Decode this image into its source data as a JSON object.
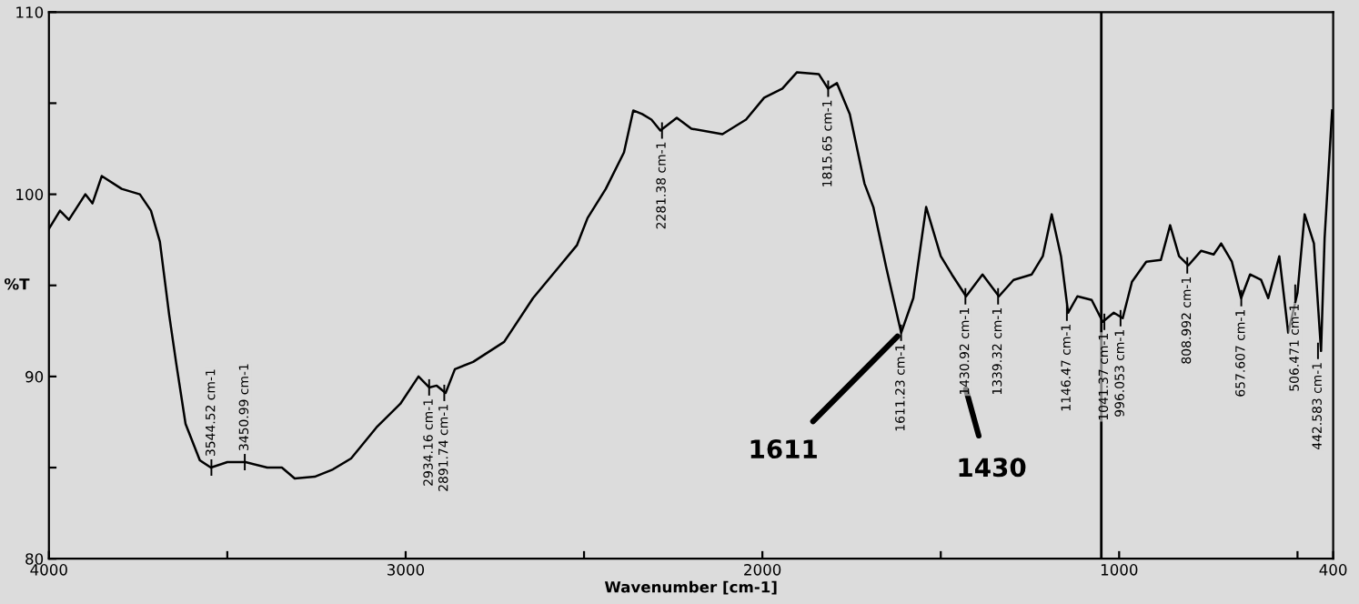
{
  "chart_data": {
    "type": "line",
    "xlabel": "Wavenumber [cm-1]",
    "ylabel": "%T",
    "xlim": [
      4000,
      400
    ],
    "ylim": [
      80,
      110
    ],
    "xticks": [
      4000,
      {
        "value": 3500,
        "label": null
      },
      3000,
      {
        "value": 2500,
        "label": null
      },
      2000,
      {
        "value": 1500,
        "label": null
      },
      1000,
      {
        "value": 500,
        "label": null
      },
      400
    ],
    "yticks": [
      80,
      {
        "value": 85,
        "label": null
      },
      90,
      {
        "value": 95,
        "label": null
      },
      100,
      {
        "value": 105,
        "label": null
      },
      110
    ],
    "grid": false,
    "legend": false,
    "marker": "none",
    "line_style": "solid",
    "ref_lines": [
      {
        "axis": "x",
        "value": 1050,
        "color": "#000000"
      }
    ],
    "series": [
      {
        "color": "#000000",
        "x": [
          4000,
          3969,
          3944,
          3898,
          3878,
          3852,
          3796,
          3745,
          3714,
          3689,
          3663,
          3643,
          3617,
          3577,
          3546,
          3500,
          3449,
          3388,
          3347,
          3311,
          3255,
          3204,
          3153,
          3082,
          3015,
          2964,
          2934,
          2913,
          2888,
          2862,
          2811,
          2724,
          2643,
          2571,
          2520,
          2490,
          2439,
          2388,
          2362,
          2337,
          2311,
          2286,
          2240,
          2199,
          2112,
          2046,
          1995,
          1944,
          1903,
          1842,
          1816,
          1791,
          1755,
          1714,
          1689,
          1653,
          1611,
          1577,
          1541,
          1500,
          1469,
          1429,
          1383,
          1337,
          1296,
          1245,
          1214,
          1189,
          1163,
          1143,
          1117,
          1077,
          1046,
          1015,
          990,
          964,
          924,
          883,
          857,
          832,
          806,
          770,
          735,
          714,
          684,
          658,
          633,
          602,
          582,
          551,
          526,
          500,
          480,
          454,
          434,
          424,
          403
        ],
        "values": [
          98.1,
          99.1,
          98.6,
          100.0,
          99.5,
          101,
          100.3,
          100,
          99.1,
          97.4,
          93.4,
          90.7,
          87.4,
          85.4,
          85.0,
          85.3,
          85.3,
          85.0,
          85.0,
          84.4,
          84.5,
          84.9,
          85.5,
          87.2,
          88.5,
          90,
          89.4,
          89.5,
          89.1,
          90.4,
          90.8,
          91.9,
          94.3,
          96,
          97.2,
          98.7,
          100.3,
          102.3,
          104.6,
          104.4,
          104.1,
          103.5,
          104.2,
          103.6,
          103.3,
          104.1,
          105.3,
          105.8,
          106.7,
          106.6,
          105.8,
          106.1,
          104.4,
          100.6,
          99.3,
          96,
          92.4,
          94.3,
          99.3,
          96.6,
          95.6,
          94.4,
          95.6,
          94.4,
          95.3,
          95.6,
          96.6,
          98.9,
          96.6,
          93.5,
          94.4,
          94.2,
          93,
          93.5,
          93.2,
          95.2,
          96.3,
          96.4,
          98.3,
          96.6,
          96.1,
          96.9,
          96.7,
          97.3,
          96.3,
          94.3,
          95.6,
          95.3,
          94.3,
          96.6,
          92.4,
          94.6,
          98.9,
          97.3,
          91.4,
          97.6,
          104.6
        ]
      }
    ],
    "annotations": [
      {
        "text": "3544.52 cm-1",
        "x": 3544.52,
        "y": 85.0
      },
      {
        "text": "3450.99 cm-1",
        "x": 3450.99,
        "y": 85.3
      },
      {
        "text": "2934.16 cm-1",
        "x": 2934.16,
        "y": 89.4
      },
      {
        "text": "2891.74 cm-1",
        "x": 2891.74,
        "y": 89.1
      },
      {
        "text": "2281.38 cm-1",
        "x": 2281.38,
        "y": 103.5
      },
      {
        "text": "1815.65 cm-1",
        "x": 1815.65,
        "y": 105.8
      },
      {
        "text": "1611.23 cm-1",
        "x": 1611.23,
        "y": 92.4
      },
      {
        "text": "1430.92 cm-1",
        "x": 1430.92,
        "y": 94.4
      },
      {
        "text": "1339.32 cm-1",
        "x": 1339.32,
        "y": 94.4
      },
      {
        "text": "1146.47 cm-1",
        "x": 1146.47,
        "y": 93.5
      },
      {
        "text": "1041.37 cm-1",
        "x": 1041.37,
        "y": 93
      },
      {
        "text": "996.053 cm-1",
        "x": 996.053,
        "y": 93.2
      },
      {
        "text": "808.992 cm-1",
        "x": 808.992,
        "y": 96.1
      },
      {
        "text": "657.607 cm-1",
        "x": 657.607,
        "y": 94.3
      },
      {
        "text": "506.471 cm-1",
        "x": 506.471,
        "y": 94.6
      },
      {
        "text": "442.583 cm-1",
        "x": 442.583,
        "y": 91.4
      },
      {
        "text": "1611",
        "x": 1611.23,
        "y": 92.4
      },
      "1430"
    ]
  }
}
